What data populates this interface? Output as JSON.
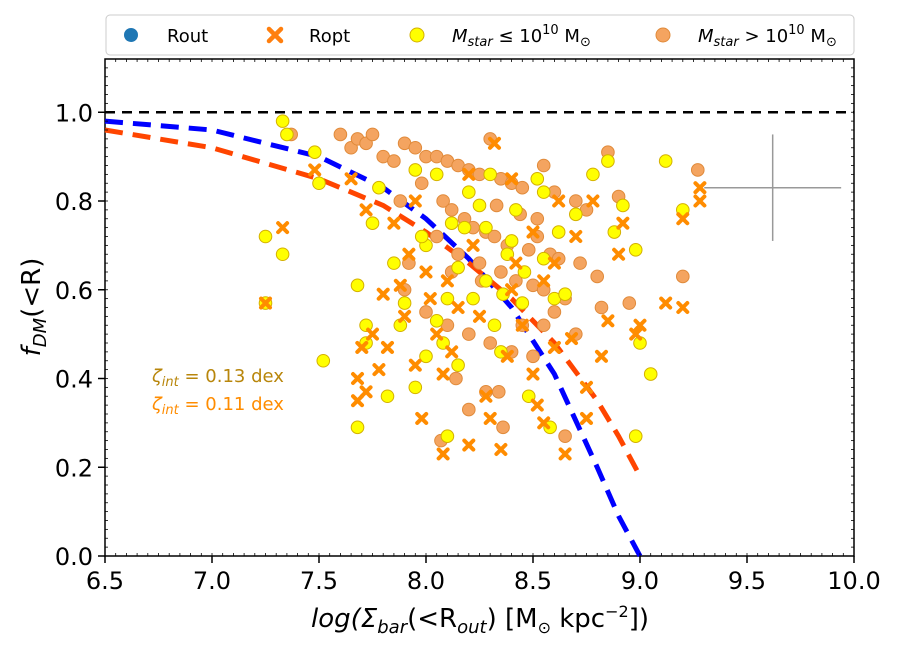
{
  "chart_data": {
    "type": "scatter",
    "xlabel_parts": {
      "pre": "log(Σ",
      "sub": "bar",
      "mid": "(<R",
      "sub2": "out",
      "post": ") [M",
      "sun": "⊙",
      "unit": " kpc",
      "sup": "−2",
      "end": "])"
    },
    "ylabel_parts": {
      "f": "f",
      "sub": "DM",
      "rest": "(<R)"
    },
    "xlim": [
      6.5,
      10.0
    ],
    "ylim": [
      0.0,
      1.12
    ],
    "xticks": [
      "6.5",
      "7.0",
      "7.5",
      "8.0",
      "8.5",
      "9.0",
      "9.5",
      "10.0"
    ],
    "yticks": [
      "0.0",
      "0.2",
      "0.4",
      "0.6",
      "0.8",
      "1.0"
    ],
    "reference_line": {
      "y": 1.0,
      "color": "#000000",
      "style": "dashed"
    },
    "colors": {
      "rout": "#1f77b4",
      "ropt": "#ff7f0e",
      "low_mass": "#ffff00",
      "high_mass": "#f4a460",
      "blue_fit": "#0000ff",
      "red_fit": "#ff4500",
      "annot1": "#b8860b",
      "annot2": "#ff8c00",
      "errorbar": "#999999"
    },
    "legend": [
      {
        "label": "Rout",
        "marker": "circle",
        "color": "#1f77b4"
      },
      {
        "label": "Ropt",
        "marker": "x",
        "color": "#ff7f0e"
      },
      {
        "label_pre": "M",
        "label_sub": "star",
        "label_mid": " ≤ 10",
        "label_sup": "10",
        "label_post": " M",
        "label_sun": "⊙",
        "marker": "circle",
        "color": "#ffff00"
      },
      {
        "label_pre": "M",
        "label_sub": "star",
        "label_mid": " > 10",
        "label_sup": "10",
        "label_post": " M",
        "label_sun": "⊙",
        "marker": "circle",
        "color": "#f4a460"
      }
    ],
    "annotations": [
      {
        "zeta": "ζ",
        "sub": "int",
        "text": " =  0.13 dex",
        "color": "#b8860b"
      },
      {
        "zeta": "ζ",
        "sub": "int",
        "text": " =  0.11 dex",
        "color": "#ff8c00"
      }
    ],
    "fits": [
      {
        "name": "blue",
        "color": "#0000ff",
        "x": [
          6.5,
          7.0,
          7.5,
          7.8,
          8.0,
          8.2,
          8.4,
          8.6,
          8.8,
          8.9,
          9.0
        ],
        "y": [
          0.98,
          0.96,
          0.9,
          0.83,
          0.76,
          0.67,
          0.56,
          0.41,
          0.2,
          0.09,
          0.0
        ]
      },
      {
        "name": "red",
        "color": "#ff4500",
        "x": [
          6.5,
          7.0,
          7.5,
          7.8,
          8.0,
          8.2,
          8.4,
          8.6,
          8.8,
          8.9,
          9.0
        ],
        "y": [
          0.96,
          0.92,
          0.85,
          0.79,
          0.73,
          0.66,
          0.58,
          0.48,
          0.35,
          0.27,
          0.18
        ]
      }
    ],
    "errorbar": {
      "x": 9.62,
      "y": 0.83,
      "xerr": 0.32,
      "yerr": 0.12
    },
    "series": [
      {
        "name": "high_mass_rout",
        "marker": "circle",
        "color": "#f4a460",
        "points": [
          [
            7.37,
            0.95
          ],
          [
            7.6,
            0.95
          ],
          [
            7.65,
            0.92
          ],
          [
            7.68,
            0.94
          ],
          [
            7.72,
            0.93
          ],
          [
            7.75,
            0.95
          ],
          [
            7.8,
            0.9
          ],
          [
            7.85,
            0.89
          ],
          [
            7.9,
            0.93
          ],
          [
            7.95,
            0.92
          ],
          [
            8.0,
            0.9
          ],
          [
            8.05,
            0.9
          ],
          [
            8.1,
            0.89
          ],
          [
            8.15,
            0.88
          ],
          [
            8.2,
            0.87
          ],
          [
            8.25,
            0.86
          ],
          [
            8.3,
            0.94
          ],
          [
            8.35,
            0.85
          ],
          [
            8.4,
            0.84
          ],
          [
            8.45,
            0.83
          ],
          [
            8.55,
            0.88
          ],
          [
            8.6,
            0.82
          ],
          [
            8.7,
            0.8
          ],
          [
            8.75,
            0.78
          ],
          [
            8.85,
            0.91
          ],
          [
            8.9,
            0.81
          ],
          [
            9.27,
            0.87
          ],
          [
            7.98,
            0.84
          ],
          [
            8.08,
            0.8
          ],
          [
            8.12,
            0.78
          ],
          [
            8.18,
            0.76
          ],
          [
            8.22,
            0.74
          ],
          [
            8.28,
            0.73
          ],
          [
            8.32,
            0.72
          ],
          [
            8.38,
            0.7
          ],
          [
            8.48,
            0.69
          ],
          [
            8.52,
            0.72
          ],
          [
            8.58,
            0.68
          ],
          [
            8.62,
            0.67
          ],
          [
            8.72,
            0.66
          ],
          [
            8.8,
            0.63
          ],
          [
            8.05,
            0.72
          ],
          [
            8.15,
            0.68
          ],
          [
            8.25,
            0.66
          ],
          [
            8.35,
            0.64
          ],
          [
            8.42,
            0.62
          ],
          [
            8.5,
            0.61
          ],
          [
            8.55,
            0.6
          ],
          [
            8.65,
            0.58
          ],
          [
            7.9,
            0.6
          ],
          [
            8.0,
            0.55
          ],
          [
            8.1,
            0.52
          ],
          [
            8.2,
            0.5
          ],
          [
            8.3,
            0.48
          ],
          [
            8.4,
            0.46
          ],
          [
            8.5,
            0.45
          ],
          [
            8.6,
            0.55
          ],
          [
            8.7,
            0.5
          ],
          [
            8.82,
            0.56
          ],
          [
            8.95,
            0.57
          ],
          [
            9.2,
            0.63
          ],
          [
            8.14,
            0.4
          ],
          [
            8.28,
            0.37
          ],
          [
            8.34,
            0.37
          ],
          [
            8.2,
            0.33
          ],
          [
            8.36,
            0.29
          ],
          [
            8.65,
            0.27
          ],
          [
            8.07,
            0.26
          ],
          [
            7.92,
            0.66
          ],
          [
            8.45,
            0.52
          ],
          [
            8.55,
            0.52
          ],
          [
            8.26,
            0.62
          ],
          [
            8.12,
            0.64
          ],
          [
            8.44,
            0.77
          ],
          [
            8.52,
            0.76
          ],
          [
            8.33,
            0.79
          ],
          [
            7.88,
            0.8
          ]
        ]
      },
      {
        "name": "low_mass_rout",
        "marker": "circle",
        "color": "#ffff00",
        "points": [
          [
            7.33,
            0.98
          ],
          [
            7.35,
            0.95
          ],
          [
            7.48,
            0.91
          ],
          [
            7.5,
            0.84
          ],
          [
            7.25,
            0.72
          ],
          [
            7.33,
            0.68
          ],
          [
            7.25,
            0.57
          ],
          [
            7.52,
            0.44
          ],
          [
            7.68,
            0.61
          ],
          [
            7.72,
            0.52
          ],
          [
            7.72,
            0.48
          ],
          [
            7.75,
            0.75
          ],
          [
            7.78,
            0.83
          ],
          [
            7.82,
            0.36
          ],
          [
            7.68,
            0.29
          ],
          [
            7.85,
            0.66
          ],
          [
            7.9,
            0.57
          ],
          [
            7.95,
            0.38
          ],
          [
            8.0,
            0.45
          ],
          [
            8.0,
            0.7
          ],
          [
            8.05,
            0.53
          ],
          [
            8.08,
            0.48
          ],
          [
            8.1,
            0.27
          ],
          [
            8.12,
            0.75
          ],
          [
            8.15,
            0.65
          ],
          [
            8.2,
            0.82
          ],
          [
            8.22,
            0.58
          ],
          [
            8.25,
            0.79
          ],
          [
            8.28,
            0.74
          ],
          [
            8.3,
            0.86
          ],
          [
            8.32,
            0.52
          ],
          [
            8.35,
            0.46
          ],
          [
            8.4,
            0.71
          ],
          [
            8.45,
            0.57
          ],
          [
            8.48,
            0.36
          ],
          [
            8.52,
            0.85
          ],
          [
            8.55,
            0.82
          ],
          [
            8.58,
            0.29
          ],
          [
            8.6,
            0.58
          ],
          [
            8.62,
            0.73
          ],
          [
            8.65,
            0.59
          ],
          [
            8.7,
            0.77
          ],
          [
            8.78,
            0.86
          ],
          [
            8.85,
            0.89
          ],
          [
            8.88,
            0.73
          ],
          [
            8.92,
            0.79
          ],
          [
            8.98,
            0.69
          ],
          [
            9.0,
            0.48
          ],
          [
            9.05,
            0.41
          ],
          [
            8.98,
            0.27
          ],
          [
            9.12,
            0.89
          ],
          [
            9.2,
            0.78
          ],
          [
            7.95,
            0.87
          ],
          [
            8.05,
            0.86
          ],
          [
            8.18,
            0.74
          ],
          [
            8.38,
            0.68
          ],
          [
            8.42,
            0.78
          ],
          [
            8.28,
            0.62
          ],
          [
            8.1,
            0.58
          ],
          [
            7.98,
            0.72
          ],
          [
            7.88,
            0.52
          ],
          [
            8.15,
            0.43
          ],
          [
            8.36,
            0.59
          ],
          [
            8.46,
            0.64
          ],
          [
            8.55,
            0.67
          ]
        ]
      },
      {
        "name": "ropt",
        "marker": "x",
        "color": "#ff8c00",
        "points": [
          [
            7.33,
            0.74
          ],
          [
            7.25,
            0.57
          ],
          [
            7.48,
            0.87
          ],
          [
            7.65,
            0.85
          ],
          [
            7.68,
            0.4
          ],
          [
            7.68,
            0.35
          ],
          [
            7.7,
            0.47
          ],
          [
            7.72,
            0.37
          ],
          [
            7.72,
            0.78
          ],
          [
            7.75,
            0.5
          ],
          [
            7.78,
            0.42
          ],
          [
            7.8,
            0.59
          ],
          [
            7.82,
            0.47
          ],
          [
            7.85,
            0.75
          ],
          [
            7.88,
            0.61
          ],
          [
            7.9,
            0.54
          ],
          [
            7.92,
            0.68
          ],
          [
            7.95,
            0.43
          ],
          [
            7.98,
            0.31
          ],
          [
            8.0,
            0.64
          ],
          [
            8.02,
            0.58
          ],
          [
            8.05,
            0.5
          ],
          [
            8.08,
            0.23
          ],
          [
            8.08,
            0.41
          ],
          [
            8.1,
            0.62
          ],
          [
            8.12,
            0.46
          ],
          [
            8.15,
            0.56
          ],
          [
            8.2,
            0.25
          ],
          [
            8.22,
            0.7
          ],
          [
            8.25,
            0.54
          ],
          [
            8.28,
            0.36
          ],
          [
            8.3,
            0.31
          ],
          [
            8.32,
            0.93
          ],
          [
            8.35,
            0.24
          ],
          [
            8.38,
            0.45
          ],
          [
            8.4,
            0.6
          ],
          [
            8.42,
            0.66
          ],
          [
            8.45,
            0.52
          ],
          [
            8.5,
            0.41
          ],
          [
            8.52,
            0.34
          ],
          [
            8.55,
            0.3
          ],
          [
            8.6,
            0.47
          ],
          [
            8.62,
            0.8
          ],
          [
            8.65,
            0.23
          ],
          [
            8.68,
            0.49
          ],
          [
            8.7,
            0.72
          ],
          [
            8.75,
            0.31
          ],
          [
            8.78,
            0.8
          ],
          [
            8.82,
            0.45
          ],
          [
            8.85,
            0.53
          ],
          [
            8.9,
            0.68
          ],
          [
            8.92,
            0.75
          ],
          [
            8.98,
            0.5
          ],
          [
            9.0,
            0.52
          ],
          [
            9.12,
            0.57
          ],
          [
            9.2,
            0.76
          ],
          [
            9.2,
            0.56
          ],
          [
            9.28,
            0.8
          ],
          [
            9.28,
            0.83
          ],
          [
            8.5,
            0.73
          ],
          [
            8.4,
            0.85
          ],
          [
            8.2,
            0.86
          ],
          [
            7.95,
            0.8
          ],
          [
            8.6,
            0.66
          ],
          [
            8.75,
            0.38
          ],
          [
            8.55,
            0.62
          ]
        ]
      }
    ]
  }
}
